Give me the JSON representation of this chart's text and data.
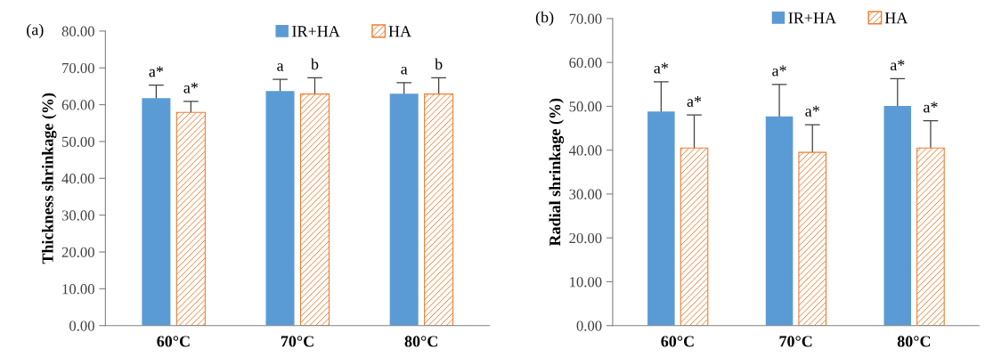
{
  "chart_data": [
    {
      "type": "bar",
      "categories": [
        "60°C",
        "70°C",
        "80°C"
      ],
      "ylabel": "Thickness shrinkage (%)",
      "series": [
        {
          "name": "IR+HA",
          "color": "#5b9bd5",
          "values": [
            61.8,
            63.7,
            63.0
          ],
          "errors": [
            3.5,
            3.2,
            3.0
          ],
          "value_labels": [
            "a*",
            "a",
            "a"
          ]
        },
        {
          "name": "HA",
          "color": "#ed7d31",
          "values": [
            57.9,
            62.9,
            62.9
          ],
          "errors": [
            3.0,
            4.4,
            4.4
          ],
          "value_labels": [
            "a*",
            "b",
            "b"
          ]
        }
      ],
      "ylim": [
        0,
        80
      ],
      "yticks": [
        {
          "value": 0,
          "label": "0.00"
        },
        {
          "value": 10,
          "label": "10.00"
        },
        {
          "value": 20,
          "label": "20.00"
        },
        {
          "value": 30,
          "label": "30.00"
        },
        {
          "value": 40,
          "label": "40.00"
        },
        {
          "value": 50,
          "label": "50.00"
        },
        {
          "value": 60,
          "label": "60.00"
        },
        {
          "value": 70,
          "label": "70.00"
        },
        {
          "value": 80,
          "label": "80.00"
        }
      ],
      "legend": "top",
      "grid": false,
      "annotations": [
        "(a)"
      ]
    },
    {
      "type": "bar",
      "categories": [
        "60°C",
        "70°C",
        "80°C"
      ],
      "ylabel": "Radial shrinkage (%)",
      "series": [
        {
          "name": "IR+HA",
          "color": "#5b9bd5",
          "values": [
            48.8,
            47.7,
            50.1
          ],
          "errors": [
            6.8,
            7.3,
            6.2
          ],
          "value_labels": [
            "a*",
            "a*",
            "a*"
          ]
        },
        {
          "name": "HA",
          "color": "#ed7d31",
          "values": [
            40.5,
            39.5,
            40.5
          ],
          "errors": [
            7.5,
            6.3,
            6.2
          ],
          "value_labels": [
            "a*",
            "a*",
            "a*"
          ]
        }
      ],
      "ylim": [
        0,
        70
      ],
      "yticks": [
        {
          "value": 0,
          "label": "0.00"
        },
        {
          "value": 10,
          "label": "10.00"
        },
        {
          "value": 20,
          "label": "20.00"
        },
        {
          "value": 30,
          "label": "30.00"
        },
        {
          "value": 40,
          "label": "40.00"
        },
        {
          "value": 50,
          "label": "50.00"
        },
        {
          "value": 60,
          "label": "60.00"
        },
        {
          "value": 70,
          "label": "70.00"
        }
      ],
      "legend": "top",
      "grid": false,
      "annotations": [
        "(b)"
      ]
    }
  ]
}
